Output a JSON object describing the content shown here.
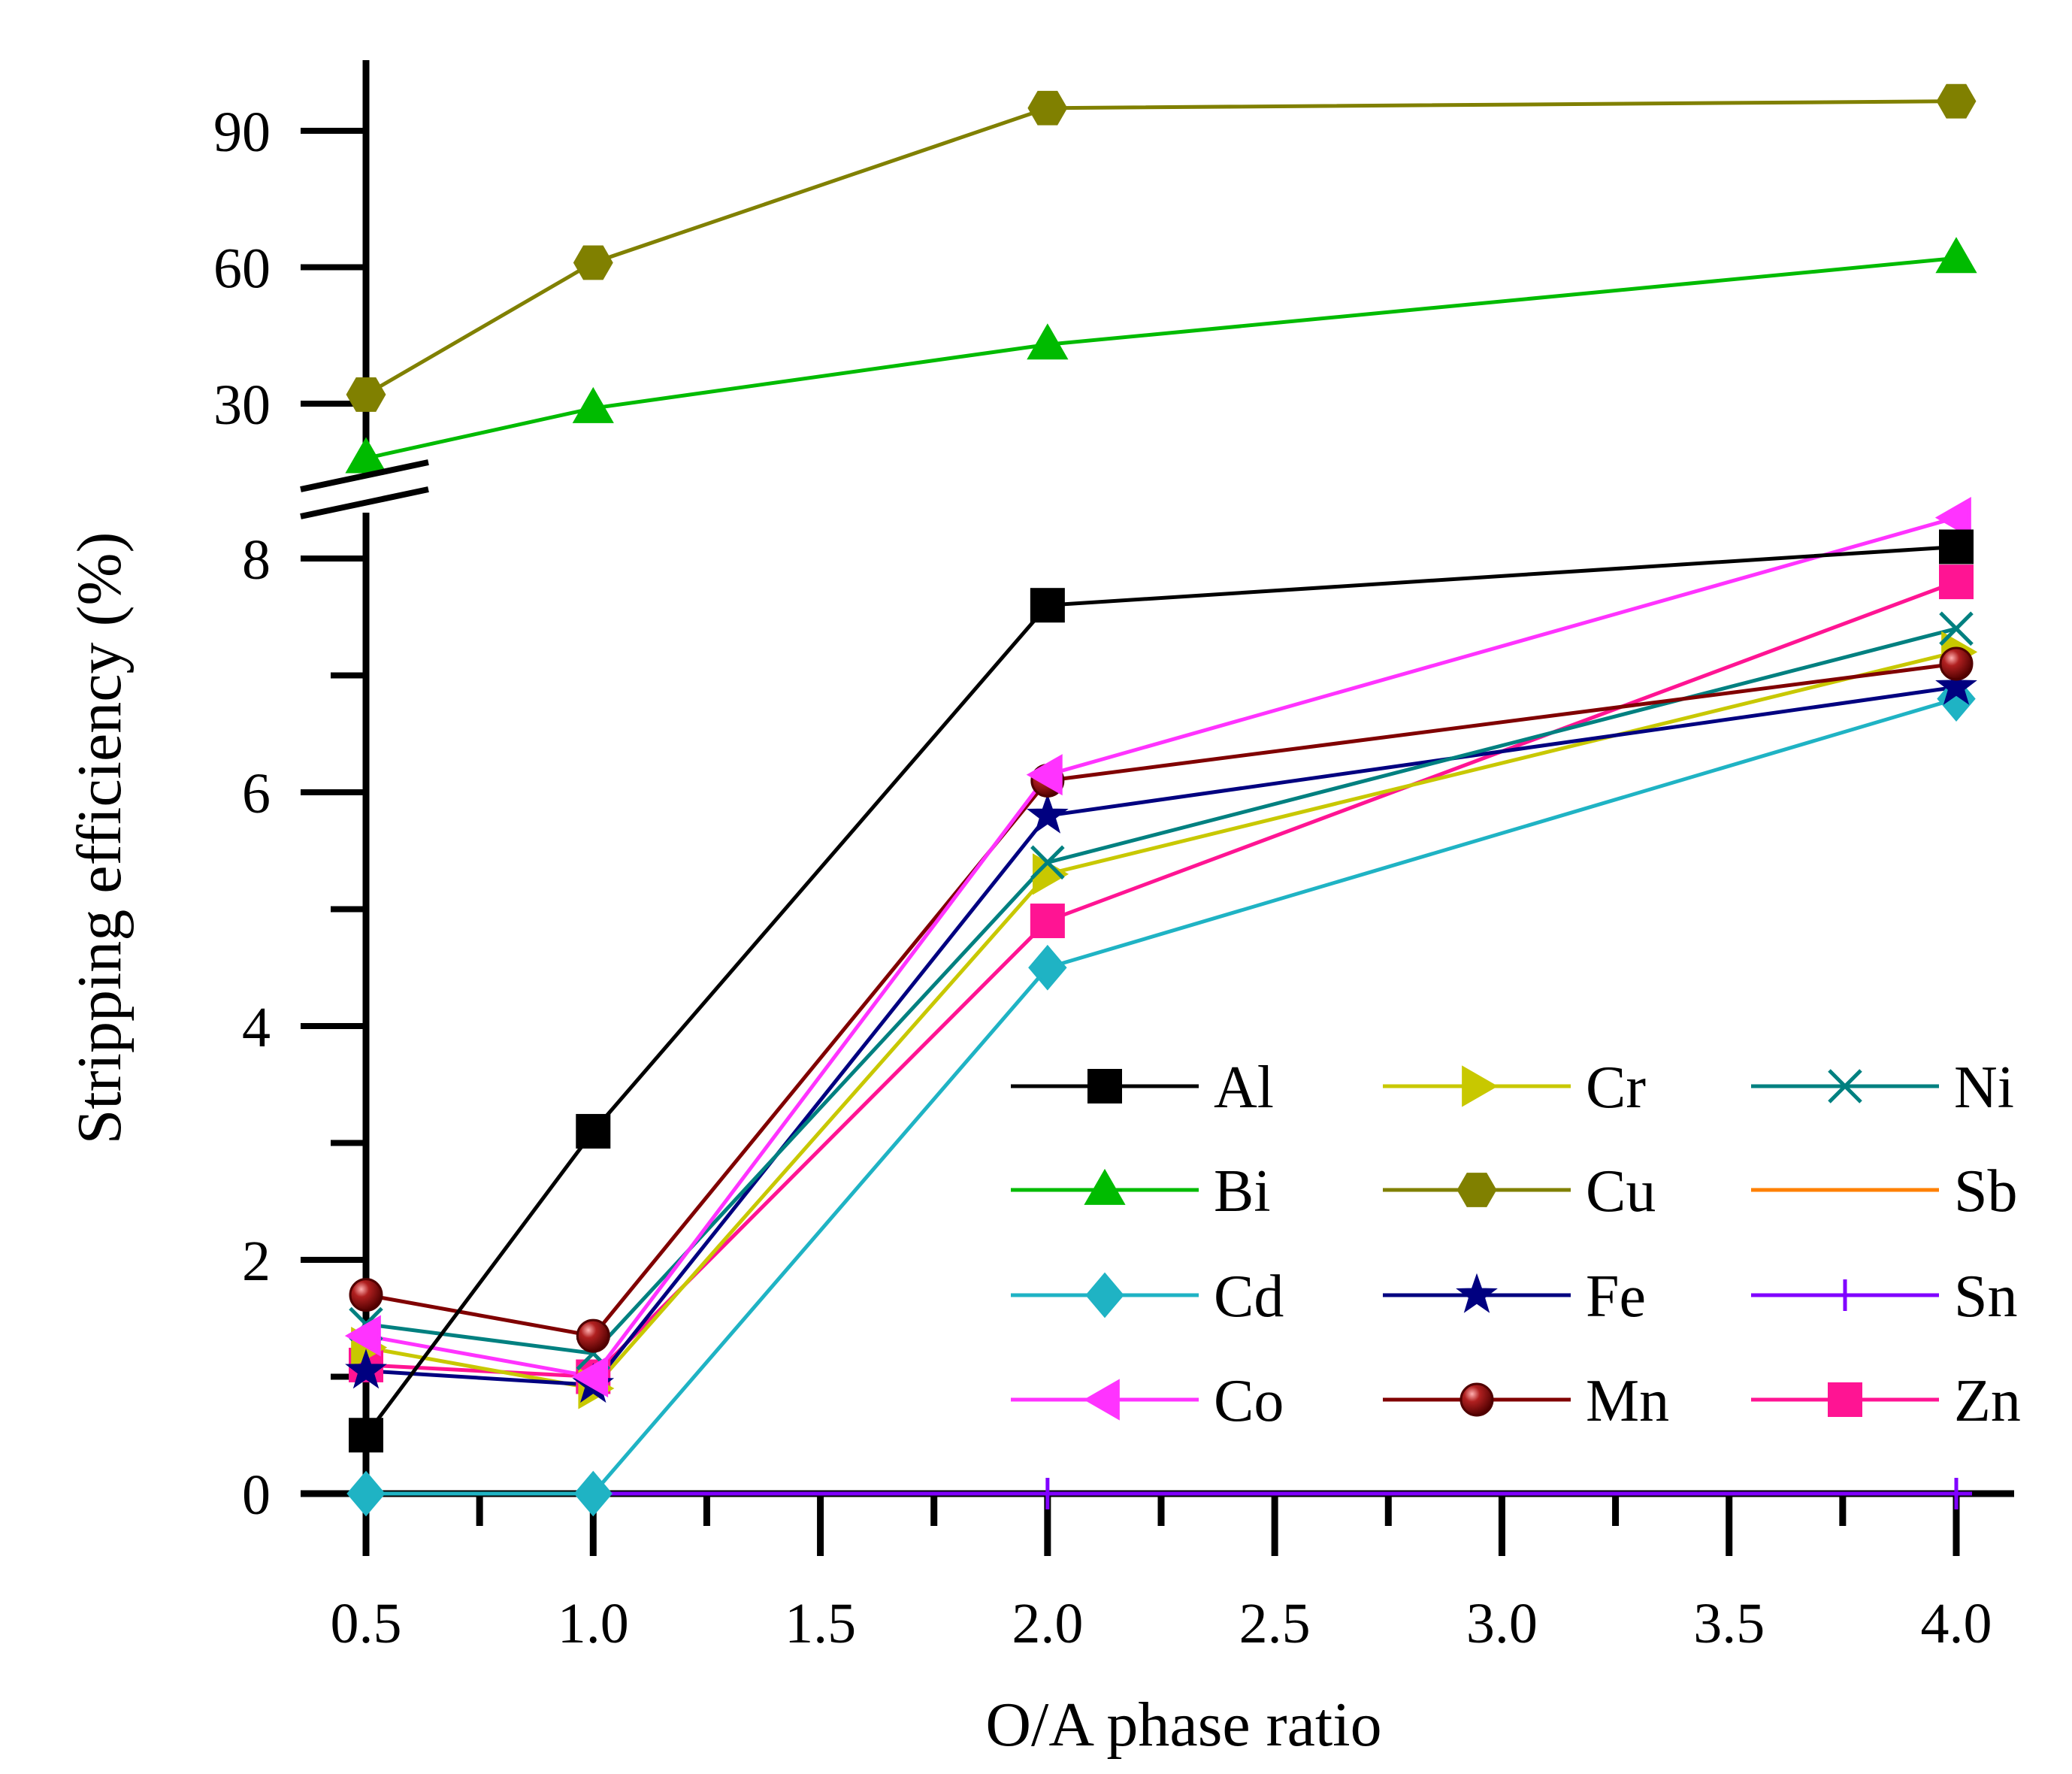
{
  "chart_data": {
    "type": "line",
    "title": "",
    "xlabel": "O/A phase ratio",
    "ylabel": "Stripping efficiency (%)",
    "x_tick_labels": [
      "0.5",
      "1.0",
      "1.5",
      "2.0",
      "2.5",
      "3.0",
      "3.5",
      "4.0"
    ],
    "y_tick_labels_lower": [
      "0",
      "2",
      "4",
      "6",
      "8"
    ],
    "y_tick_labels_upper": [
      "30",
      "60",
      "90"
    ],
    "y_axis_break": {
      "lower_range": [
        0,
        8.7
      ],
      "upper_range": [
        15,
        103
      ]
    },
    "x": [
      0.5,
      1.0,
      2.0,
      4.0
    ],
    "legend_position": "lower-right",
    "series": [
      {
        "name": "Al",
        "color": "#000000",
        "marker": "square",
        "values": [
          0.5,
          3.1,
          7.6,
          8.1
        ]
      },
      {
        "name": "Bi",
        "color": "#00bb00",
        "marker": "triangle-up",
        "values": [
          18,
          29,
          43,
          62
        ]
      },
      {
        "name": "Cd",
        "color": "#1fb3c4",
        "marker": "diamond",
        "values": [
          0,
          0,
          4.5,
          6.8
        ]
      },
      {
        "name": "Co",
        "color": "#ff33ff",
        "marker": "triangle-left",
        "values": [
          1.35,
          1.0,
          6.15,
          8.35
        ]
      },
      {
        "name": "Cr",
        "color": "#c8c800",
        "marker": "triangle-right",
        "values": [
          1.25,
          0.9,
          5.3,
          7.2
        ]
      },
      {
        "name": "Cu",
        "color": "#808000",
        "marker": "hexagon",
        "values": [
          32,
          61,
          95,
          96.5
        ]
      },
      {
        "name": "Fe",
        "color": "#000080",
        "marker": "star",
        "values": [
          1.05,
          0.93,
          5.8,
          6.9
        ]
      },
      {
        "name": "Mn",
        "color": "#800000",
        "marker": "sphere",
        "values": [
          1.7,
          1.35,
          6.1,
          7.1
        ]
      },
      {
        "name": "Ni",
        "color": "#008080",
        "marker": "x",
        "values": [
          1.45,
          1.2,
          5.4,
          7.4
        ]
      },
      {
        "name": "Sb",
        "color": "#ff8000",
        "marker": "none",
        "values": [
          0,
          0,
          0,
          0
        ]
      },
      {
        "name": "Sn",
        "color": "#8000ff",
        "marker": "plus",
        "values": [
          0,
          0,
          0,
          0
        ]
      },
      {
        "name": "Zn",
        "color": "#ff1493",
        "marker": "square",
        "values": [
          1.1,
          1.0,
          4.9,
          7.8
        ]
      }
    ]
  }
}
